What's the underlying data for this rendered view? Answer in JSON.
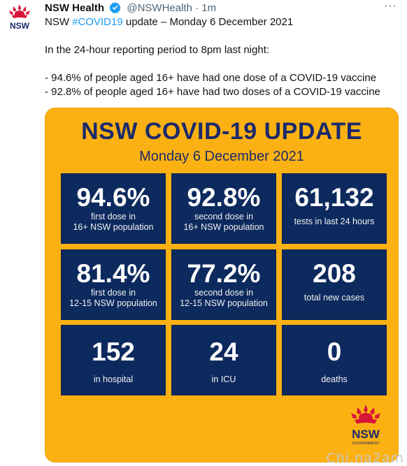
{
  "tweet": {
    "author_name": "NSW Health",
    "handle": "@NSWHealth",
    "separator": "·",
    "time": "1m",
    "more_label": "···",
    "avatar_text": "NSW",
    "line1_prefix": "NSW ",
    "hashtag": "#COVID19",
    "line1_suffix": " update – Monday 6 December 2021",
    "line2": "In the 24-hour reporting period to 8pm last night:",
    "line3": "- 94.6% of people aged 16+ have had one dose of a COVID-19 vaccine",
    "line4": "- 92.8% of people aged 16+ have had two doses of a COVID-19 vaccine"
  },
  "card": {
    "title": "NSW COVID-19 UPDATE",
    "date": "Monday 6 December 2021",
    "tiles": [
      {
        "value": "94.6%",
        "line1": "first dose in",
        "line2": "16+ NSW population"
      },
      {
        "value": "92.8%",
        "line1": "second dose in",
        "line2": "16+ NSW population"
      },
      {
        "value": "61,132",
        "line1": "tests in last 24 hours",
        "line2": ""
      },
      {
        "value": "81.4%",
        "line1": "first dose in",
        "line2": "12-15 NSW population"
      },
      {
        "value": "77.2%",
        "line1": "second dose in",
        "line2": "12-15 NSW population"
      },
      {
        "value": "208",
        "line1": "total new cases",
        "line2": ""
      },
      {
        "value": "152",
        "line1": "in hospital",
        "line2": ""
      },
      {
        "value": "24",
        "line1": "in ICU",
        "line2": ""
      },
      {
        "value": "0",
        "line1": "deaths",
        "line2": ""
      }
    ],
    "logo_text": "NSW",
    "logo_subtext": "GOVERNMENT"
  },
  "watermark": "Chi.na2am",
  "colors": {
    "card_bg": "#fcb112",
    "tile_bg": "#0d2a5e",
    "title_color": "#1b2a6b",
    "hashtag": "#1d9bf0",
    "waratah_red": "#d7153a"
  }
}
